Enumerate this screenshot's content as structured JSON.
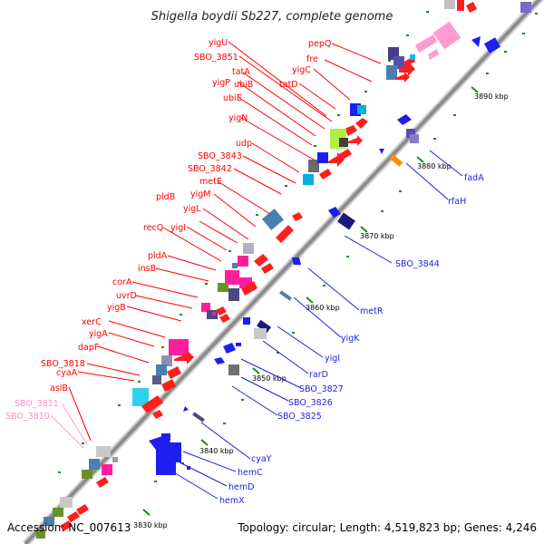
{
  "title": "Shigella boydii Sb227, complete genome",
  "footer": {
    "accession": "Accession: NC_007613",
    "summary": "Topology: circular; Length: 4,519,823 bp; Genes: 4,246"
  },
  "colors": {
    "forward_label": "#ff0000",
    "reverse_label": "#1e1ee6",
    "pseudo_label": "#ff8cc8",
    "backbone": "#888888",
    "forward_arrow": "#ff1e1e",
    "reverse_arrow": "#1e1ef0"
  },
  "scale_ticks": [
    "3830 kbp",
    "3840 kbp",
    "3850 kbp",
    "3860 kbp",
    "3870 kbp",
    "3880 kbp",
    "3890 kbp"
  ],
  "forward_genes": [
    "pepQ",
    "fre",
    "yigC",
    "tatD",
    "yigU",
    "SBO_3851",
    "tatA",
    "ubiB",
    "yigP",
    "ubiE",
    "yigN",
    "udp",
    "SBO_3843",
    "SBO_3842",
    "metE",
    "pldB",
    "yigM",
    "yigL",
    "recQ",
    "yigI",
    "pldA",
    "insB",
    "corA",
    "uvrD",
    "yigB",
    "xerC",
    "yigA",
    "dapF",
    "SBO_3818",
    "cyaA",
    "aslB"
  ],
  "pseudo_genes": [
    "SBO_3811",
    "SBO_3810"
  ],
  "reverse_genes": [
    "fadA",
    "rfaH",
    "SBO_3844",
    "metR",
    "yigK",
    "yigI",
    "rarD",
    "SBO_3827",
    "SBO_3826",
    "SBO_3825",
    "cyaY",
    "hemC",
    "hemD",
    "hemX"
  ]
}
